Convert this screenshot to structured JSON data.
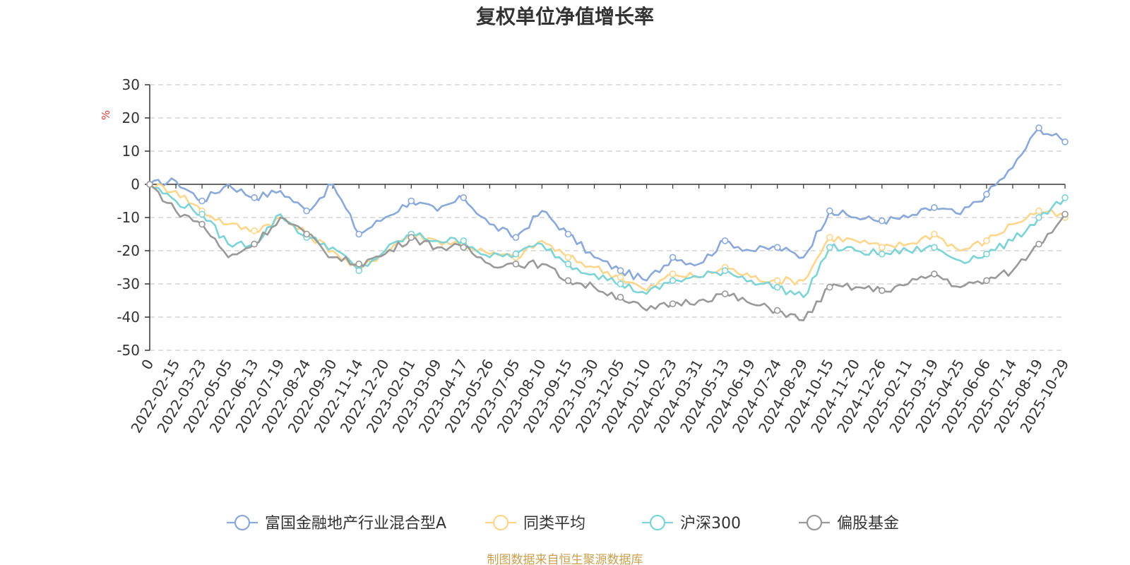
{
  "chart_data": {
    "type": "line",
    "title": "复权单位净值增长率",
    "ylabel": "%",
    "ylim": [
      -50,
      30
    ],
    "yticks": [
      30,
      20,
      10,
      0,
      -10,
      -20,
      -30,
      -40,
      -50
    ],
    "grid": true,
    "legend_position": "bottom",
    "x_tick_labels": [
      "0",
      "2022-02-15",
      "2022-03-23",
      "2022-05-05",
      "2022-06-13",
      "2022-07-19",
      "2022-08-24",
      "2022-09-30",
      "2022-11-14",
      "2022-12-20",
      "2023-02-01",
      "2023-03-09",
      "2023-04-17",
      "2023-05-26",
      "2023-07-05",
      "2023-08-10",
      "2023-09-15",
      "2023-10-30",
      "2023-12-05",
      "2024-01-10",
      "2024-02-23",
      "2024-03-31",
      "2024-05-13",
      "2024-06-19",
      "2024-07-24",
      "2024-08-29",
      "2024-10-15",
      "2024-11-20",
      "2024-12-26",
      "2025-02-11",
      "2025-03-19",
      "2025-04-25",
      "2025-06-06",
      "2025-07-14",
      "2025-08-19",
      "2025-10-29"
    ],
    "series": [
      {
        "name": "富国金融地产行业混合型A",
        "color": "#8aa9d8",
        "values": [
          0,
          1,
          -5,
          0,
          -4,
          -2,
          -8,
          0,
          -15,
          -10,
          -5,
          -8,
          -4,
          -12,
          -16,
          -8,
          -15,
          -22,
          -26,
          -29,
          -22,
          -24,
          -17,
          -20,
          -19,
          -22,
          -8,
          -10,
          -11,
          -10,
          -7,
          -9,
          -3,
          5,
          17,
          12.8
        ]
      },
      {
        "name": "同类平均",
        "color": "#fcd68d",
        "values": [
          0,
          -2,
          -8,
          -12,
          -14,
          -10,
          -15,
          -20,
          -26,
          -20,
          -15,
          -17,
          -18,
          -21,
          -22,
          -17,
          -22,
          -25,
          -28,
          -32,
          -27,
          -28,
          -25,
          -28,
          -29,
          -29,
          -16,
          -17,
          -19,
          -18,
          -15,
          -20,
          -17,
          -12,
          -8,
          -10
        ]
      },
      {
        "name": "沪深300",
        "color": "#7dd3d6",
        "values": [
          0,
          -5,
          -9,
          -18,
          -18,
          -9,
          -16,
          -19,
          -26,
          -20,
          -15,
          -17,
          -17,
          -22,
          -21,
          -18,
          -24,
          -27,
          -30,
          -33,
          -29,
          -28,
          -26,
          -29,
          -31,
          -34,
          -19,
          -20,
          -21,
          -20,
          -19,
          -23,
          -21,
          -17,
          -10,
          -4
        ]
      },
      {
        "name": "偏股基金",
        "color": "#999999",
        "values": [
          0,
          -8,
          -12,
          -22,
          -18,
          -10,
          -15,
          -22,
          -24,
          -21,
          -16,
          -19,
          -19,
          -24,
          -24,
          -24,
          -29,
          -31,
          -34,
          -38,
          -36,
          -35,
          -33,
          -36,
          -38,
          -41,
          -31,
          -31,
          -32,
          -30,
          -27,
          -31,
          -29,
          -26,
          -18,
          -9
        ]
      }
    ]
  },
  "source_text": "制图数据来自恒生聚源数据库"
}
